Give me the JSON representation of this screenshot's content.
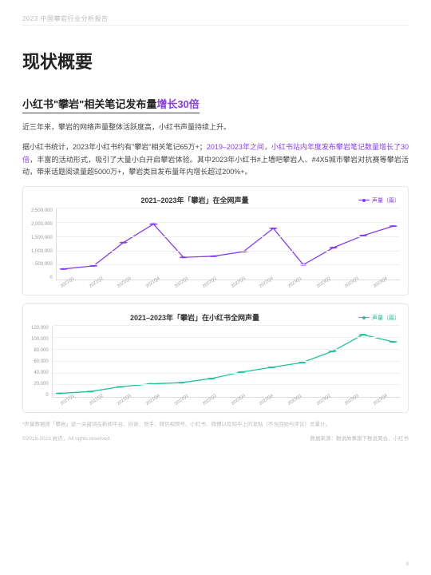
{
  "header_line": "2023 中国攀岩行业分析报告",
  "h1": "现状概要",
  "h2_a": "小红书\"攀岩\"相关笔记发布量",
  "h2_b": "增长30倍",
  "p1": "近三年来，攀岩的网络声量整体活跃度高，小红书声量持续上升。",
  "p2_a": "据小红书统计，2023年小红书约有\"攀岩\"相关笔记65万+；",
  "p2_b": "2019–2023年之间，小红书站内年度发布攀岩笔记数量增长了30倍",
  "p2_c": "，丰富的活动形式，吸引了大量小白开启攀岩体验。其中2023年小红书#上墙吧攀岩人、#4X5城市攀岩对抗赛等攀岩活动，带来话题阅读量超5000万+，攀岩类目发布量年内增长超过200%+。",
  "chart1": {
    "title": "2021–2023年「攀岩」在全网声量",
    "legend": "声量（篇）",
    "color": "#883cf2",
    "yticks": [
      "0",
      "500,000",
      "1,000,000",
      "1,500,000",
      "2,000,000",
      "2,500,000"
    ],
    "ymax": 2500000,
    "x": [
      "2021Q1",
      "2021Q2",
      "2021Q3",
      "2021Q4",
      "2022Q1",
      "2022Q2",
      "2022Q3",
      "2022Q4",
      "2023Q1",
      "2023Q2",
      "2023Q3",
      "2023Q4"
    ],
    "values": [
      370000,
      480000,
      1300000,
      1950000,
      780000,
      820000,
      980000,
      1800000,
      520000,
      1120000,
      1550000,
      1880000
    ]
  },
  "chart2": {
    "title": "2021–2023年「攀岩」在小红书全网声量",
    "legend": "声量（篇）",
    "color": "#22c39a",
    "yticks": [
      "0",
      "20,000",
      "40,000",
      "60,000",
      "80,000",
      "100,000",
      "120,000"
    ],
    "ymax": 120000,
    "x": [
      "2021Q1",
      "2021Q2",
      "2021Q3",
      "2021Q4",
      "2022Q1",
      "2022Q2",
      "2022Q3",
      "2022Q4",
      "2023Q1",
      "2023Q2",
      "2023Q3",
      "2023Q4"
    ],
    "values": [
      6000,
      9000,
      17000,
      22000,
      24000,
      31000,
      42000,
      50000,
      58000,
      77000,
      105000,
      93000
    ]
  },
  "footnote": "*声量数据按「攀岩」这一关键词在新闻平台、抖音、快手、微信视频号、小红书、微博以及知乎上的发贴（不含回帖与评论）总量计。",
  "footer_left": "©2016-2023 岩点，All rights reserved.",
  "footer_right": "数据来源：数说故事旗下数说聚合、小红书",
  "page_number": "9"
}
